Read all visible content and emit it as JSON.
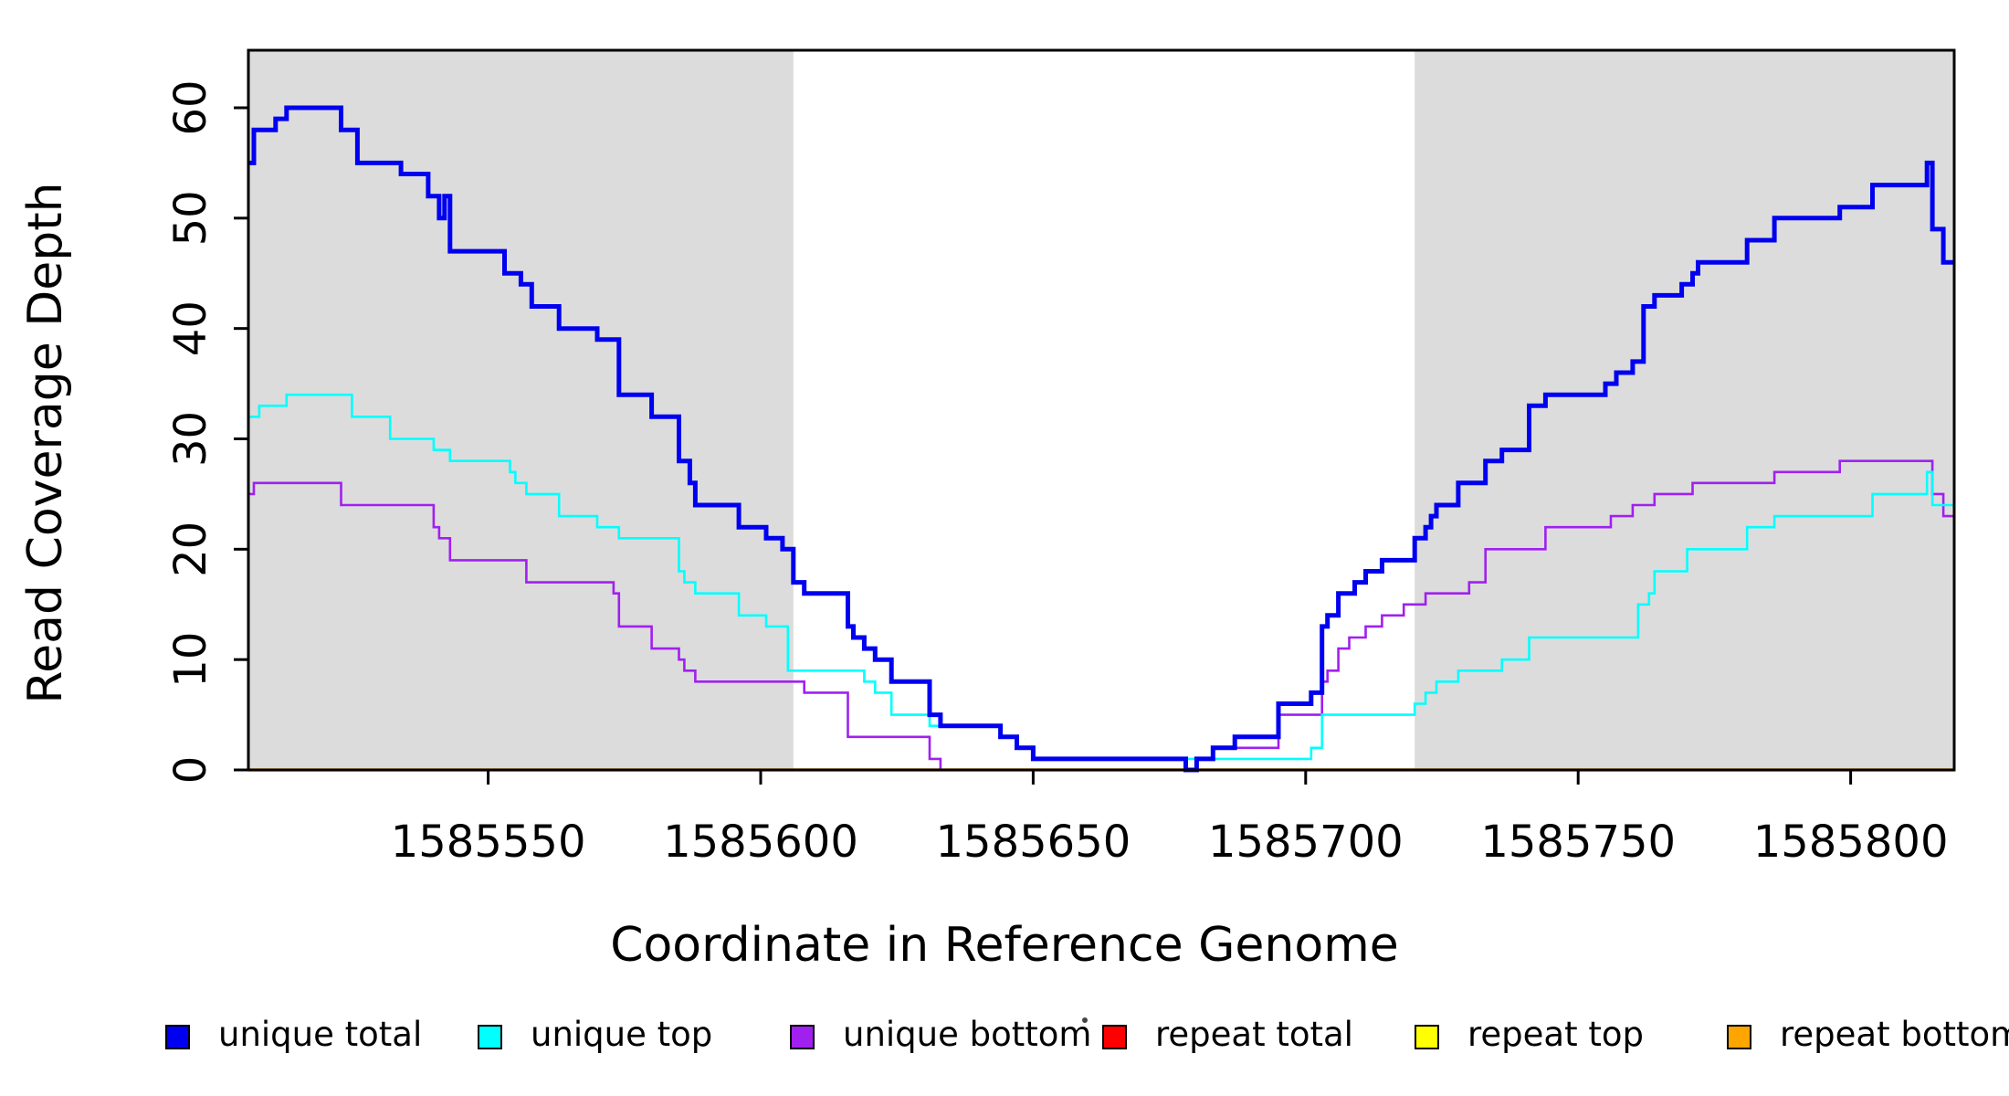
{
  "axes": {
    "xlabel": "Coordinate in Reference Genome",
    "ylabel": "Read Coverage Depth",
    "x_tick_labels": [
      "1585550",
      "1585600",
      "1585650",
      "1585700",
      "1585750",
      "1585800"
    ],
    "x_tick_values": [
      1585550,
      1585600,
      1585650,
      1585700,
      1585750,
      1585800
    ],
    "y_tick_labels": [
      "0",
      "10",
      "20",
      "30",
      "40",
      "50",
      "60"
    ],
    "y_tick_values": [
      0,
      10,
      20,
      30,
      40,
      50,
      60
    ]
  },
  "chart_data": {
    "type": "line",
    "subtype": "step-post",
    "xlabel": "Coordinate in Reference Genome",
    "ylabel": "Read Coverage Depth",
    "xlim": [
      1585506,
      1585819
    ],
    "ylim": [
      0,
      65.6
    ],
    "grid": false,
    "background_color": "#ffffff",
    "shaded_band_color": "#dcdcdc",
    "shaded_regions": [
      {
        "name": "left-unique-region",
        "x0": 1585506,
        "x1": 1585606
      },
      {
        "name": "right-unique-region",
        "x0": 1585720,
        "x1": 1585819
      }
    ],
    "legend_position": "bottom",
    "series": [
      {
        "name": "repeat total",
        "color": "#ff0000",
        "width": 3,
        "steps": [
          [
            1585506,
            0
          ]
        ]
      },
      {
        "name": "repeat top",
        "color": "#ffff00",
        "width": 3,
        "steps": [
          [
            1585506,
            0
          ]
        ]
      },
      {
        "name": "repeat bottom",
        "color": "#ffa500",
        "width": 3.5,
        "steps": [
          [
            1585506,
            0
          ]
        ]
      },
      {
        "name": "unique bottom",
        "color": "#a020f0",
        "width": 2.6,
        "steps": [
          [
            1585506,
            25
          ],
          [
            1585507,
            26
          ],
          [
            1585523,
            24
          ],
          [
            1585540,
            22
          ],
          [
            1585541,
            21
          ],
          [
            1585543,
            19
          ],
          [
            1585557,
            17
          ],
          [
            1585573,
            16
          ],
          [
            1585574,
            13
          ],
          [
            1585580,
            11
          ],
          [
            1585585,
            10
          ],
          [
            1585586,
            9
          ],
          [
            1585588,
            8
          ],
          [
            1585608,
            7
          ],
          [
            1585616,
            3
          ],
          [
            1585631,
            1
          ],
          [
            1585633,
            0
          ],
          [
            1585680,
            1
          ],
          [
            1585683,
            2
          ],
          [
            1585695,
            5
          ],
          [
            1585703,
            8
          ],
          [
            1585704,
            9
          ],
          [
            1585706,
            11
          ],
          [
            1585708,
            12
          ],
          [
            1585711,
            13
          ],
          [
            1585714,
            14
          ],
          [
            1585718,
            15
          ],
          [
            1585722,
            16
          ],
          [
            1585730,
            17
          ],
          [
            1585733,
            20
          ],
          [
            1585744,
            22
          ],
          [
            1585756,
            23
          ],
          [
            1585760,
            24
          ],
          [
            1585764,
            25
          ],
          [
            1585771,
            26
          ],
          [
            1585786,
            27
          ],
          [
            1585798,
            28
          ],
          [
            1585815,
            25
          ],
          [
            1585817,
            23
          ]
        ]
      },
      {
        "name": "unique top",
        "color": "#00ffff",
        "width": 2.6,
        "steps": [
          [
            1585506,
            32
          ],
          [
            1585508,
            33
          ],
          [
            1585513,
            34
          ],
          [
            1585525,
            32
          ],
          [
            1585532,
            30
          ],
          [
            1585540,
            29
          ],
          [
            1585543,
            28
          ],
          [
            1585554,
            27
          ],
          [
            1585555,
            26
          ],
          [
            1585557,
            25
          ],
          [
            1585563,
            23
          ],
          [
            1585570,
            22
          ],
          [
            1585574,
            21
          ],
          [
            1585585,
            18
          ],
          [
            1585586,
            17
          ],
          [
            1585588,
            16
          ],
          [
            1585596,
            14
          ],
          [
            1585601,
            13
          ],
          [
            1585605,
            9
          ],
          [
            1585619,
            8
          ],
          [
            1585621,
            7
          ],
          [
            1585624,
            5
          ],
          [
            1585631,
            4
          ],
          [
            1585644,
            3
          ],
          [
            1585647,
            2
          ],
          [
            1585650,
            1
          ],
          [
            1585701,
            2
          ],
          [
            1585703,
            5
          ],
          [
            1585720,
            6
          ],
          [
            1585722,
            7
          ],
          [
            1585724,
            8
          ],
          [
            1585728,
            9
          ],
          [
            1585736,
            10
          ],
          [
            1585741,
            12
          ],
          [
            1585761,
            15
          ],
          [
            1585763,
            16
          ],
          [
            1585764,
            18
          ],
          [
            1585770,
            20
          ],
          [
            1585781,
            22
          ],
          [
            1585786,
            23
          ],
          [
            1585804,
            25
          ],
          [
            1585814,
            27
          ],
          [
            1585815,
            24
          ]
        ]
      },
      {
        "name": "unique total",
        "color": "#0000f0",
        "width": 5,
        "steps": [
          [
            1585506,
            55
          ],
          [
            1585507,
            58
          ],
          [
            1585511,
            59
          ],
          [
            1585513,
            60
          ],
          [
            1585523,
            58
          ],
          [
            1585526,
            55
          ],
          [
            1585534,
            54
          ],
          [
            1585539,
            52
          ],
          [
            1585541,
            50
          ],
          [
            1585542,
            52
          ],
          [
            1585543,
            47
          ],
          [
            1585553,
            45
          ],
          [
            1585556,
            44
          ],
          [
            1585558,
            42
          ],
          [
            1585563,
            40
          ],
          [
            1585570,
            39
          ],
          [
            1585574,
            34
          ],
          [
            1585580,
            32
          ],
          [
            1585585,
            28
          ],
          [
            1585587,
            26
          ],
          [
            1585588,
            24
          ],
          [
            1585596,
            22
          ],
          [
            1585601,
            21
          ],
          [
            1585604,
            20
          ],
          [
            1585606,
            17
          ],
          [
            1585608,
            16
          ],
          [
            1585616,
            13
          ],
          [
            1585617,
            12
          ],
          [
            1585619,
            11
          ],
          [
            1585621,
            10
          ],
          [
            1585624,
            8
          ],
          [
            1585631,
            5
          ],
          [
            1585633,
            4
          ],
          [
            1585644,
            3
          ],
          [
            1585647,
            2
          ],
          [
            1585650,
            1
          ],
          [
            1585678,
            0
          ],
          [
            1585680,
            1
          ],
          [
            1585683,
            2
          ],
          [
            1585687,
            3
          ],
          [
            1585695,
            6
          ],
          [
            1585701,
            7
          ],
          [
            1585703,
            13
          ],
          [
            1585704,
            14
          ],
          [
            1585706,
            16
          ],
          [
            1585709,
            17
          ],
          [
            1585711,
            18
          ],
          [
            1585714,
            19
          ],
          [
            1585720,
            21
          ],
          [
            1585722,
            22
          ],
          [
            1585723,
            23
          ],
          [
            1585724,
            24
          ],
          [
            1585728,
            26
          ],
          [
            1585733,
            28
          ],
          [
            1585736,
            29
          ],
          [
            1585741,
            33
          ],
          [
            1585744,
            34
          ],
          [
            1585755,
            35
          ],
          [
            1585757,
            36
          ],
          [
            1585760,
            37
          ],
          [
            1585762,
            42
          ],
          [
            1585764,
            43
          ],
          [
            1585769,
            44
          ],
          [
            1585771,
            45
          ],
          [
            1585772,
            46
          ],
          [
            1585781,
            48
          ],
          [
            1585786,
            50
          ],
          [
            1585798,
            51
          ],
          [
            1585804,
            53
          ],
          [
            1585814,
            55
          ],
          [
            1585815,
            49
          ],
          [
            1585817,
            46
          ]
        ]
      }
    ]
  },
  "legend": {
    "items": [
      {
        "label": "unique total",
        "color": "#0000f0"
      },
      {
        "label": "unique top",
        "color": "#00ffff"
      },
      {
        "label": "unique bottom",
        "color": "#a020f0"
      },
      {
        "label": "repeat total",
        "color": "#ff0000"
      },
      {
        "label": "repeat top",
        "color": "#ffff00"
      },
      {
        "label": "repeat bottom",
        "color": "#ffa500"
      }
    ]
  }
}
